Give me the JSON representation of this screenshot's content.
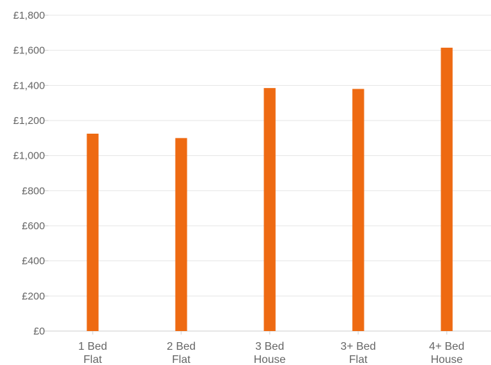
{
  "colors": {
    "bar": "#ee6a12",
    "grid": "#e6e6e6",
    "axis": "#cfcfcf",
    "text": "#666666"
  },
  "chart_data": {
    "type": "bar",
    "categories": [
      [
        "1 Bed",
        "Flat"
      ],
      [
        "2 Bed",
        "Flat"
      ],
      [
        "3 Bed",
        "House"
      ],
      [
        "3+ Bed",
        "Flat"
      ],
      [
        "4+ Bed",
        "House"
      ]
    ],
    "values": [
      1125,
      1100,
      1385,
      1380,
      1615
    ],
    "ylim": [
      0,
      1800
    ],
    "yticks": [
      0,
      200,
      400,
      600,
      800,
      1000,
      1200,
      1400,
      1600,
      1800
    ],
    "ytick_labels": [
      "£0",
      "£200",
      "£400",
      "£600",
      "£800",
      "£1,000",
      "£1,200",
      "£1,400",
      "£1,600",
      "£1,800"
    ],
    "grid": true,
    "legend": "none"
  }
}
